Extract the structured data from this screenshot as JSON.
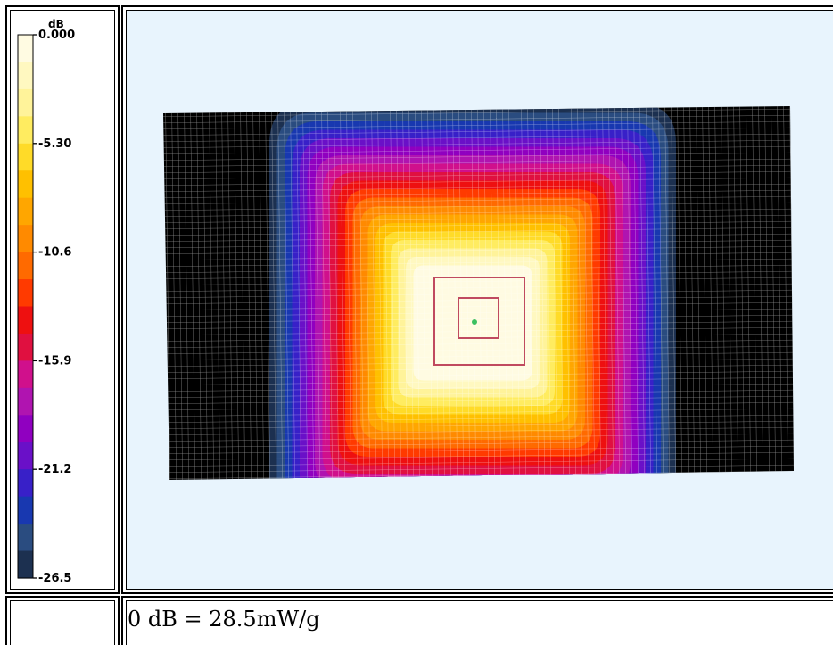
{
  "chart_data": {
    "type": "heatmap",
    "title": "",
    "colorbar": {
      "unit": "dB",
      "ticks": [
        "0.000",
        "-5.30",
        "-10.6",
        "-15.9",
        "-21.2",
        "-26.5"
      ],
      "range": [
        -26.5,
        0.0
      ],
      "levels": 20,
      "colors": [
        "#fffbe2",
        "#fff8c0",
        "#fff39a",
        "#ffec60",
        "#ffdb28",
        "#ffc000",
        "#ffa600",
        "#ff8a00",
        "#ff6a00",
        "#ff3a00",
        "#ee1010",
        "#e01040",
        "#d0108c",
        "#b014b0",
        "#9000c0",
        "#6a10c8",
        "#3820c8",
        "#1838b0",
        "#2a4c80",
        "#1c3050",
        "#000000"
      ]
    },
    "peak_marker": {
      "x": 0.0,
      "y": 0.0,
      "color": "#3cc060"
    },
    "boxes": [
      {
        "name": "zoom-scan-outer",
        "color": "#c04a60"
      },
      {
        "name": "zoom-scan-inner",
        "color": "#c04a60"
      }
    ],
    "background_color": "#e8f4fd",
    "grid": true
  },
  "footer": {
    "reference": "0 dB = 28.5mW/g"
  }
}
